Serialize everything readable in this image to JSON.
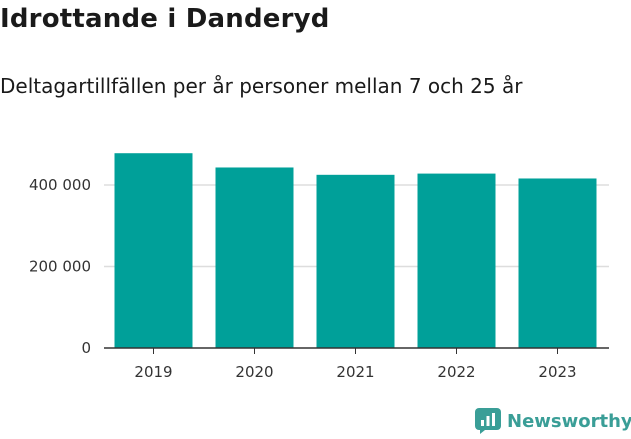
{
  "title": "Idrottande i Danderyd",
  "subtitle": "Deltagartillfällen per år personer mellan 7 och 25 år",
  "brand": "Newsworthy",
  "colors": {
    "bar": "#00a099",
    "grid": "#dddddd",
    "axis": "#333333",
    "brand": "#3a9e97"
  },
  "chart_data": {
    "type": "bar",
    "title": "Idrottande i Danderyd",
    "subtitle": "Deltagartillfällen per år personer mellan 7 och 25 år",
    "categories": [
      "2019",
      "2020",
      "2021",
      "2022",
      "2023"
    ],
    "values": [
      478000,
      443000,
      425000,
      428000,
      416000
    ],
    "ylim": [
      0,
      500000
    ],
    "yticks": [
      0,
      200000,
      400000
    ],
    "ytick_labels": [
      "0",
      "200 000",
      "400 000"
    ],
    "grid": true,
    "legend": "none"
  }
}
